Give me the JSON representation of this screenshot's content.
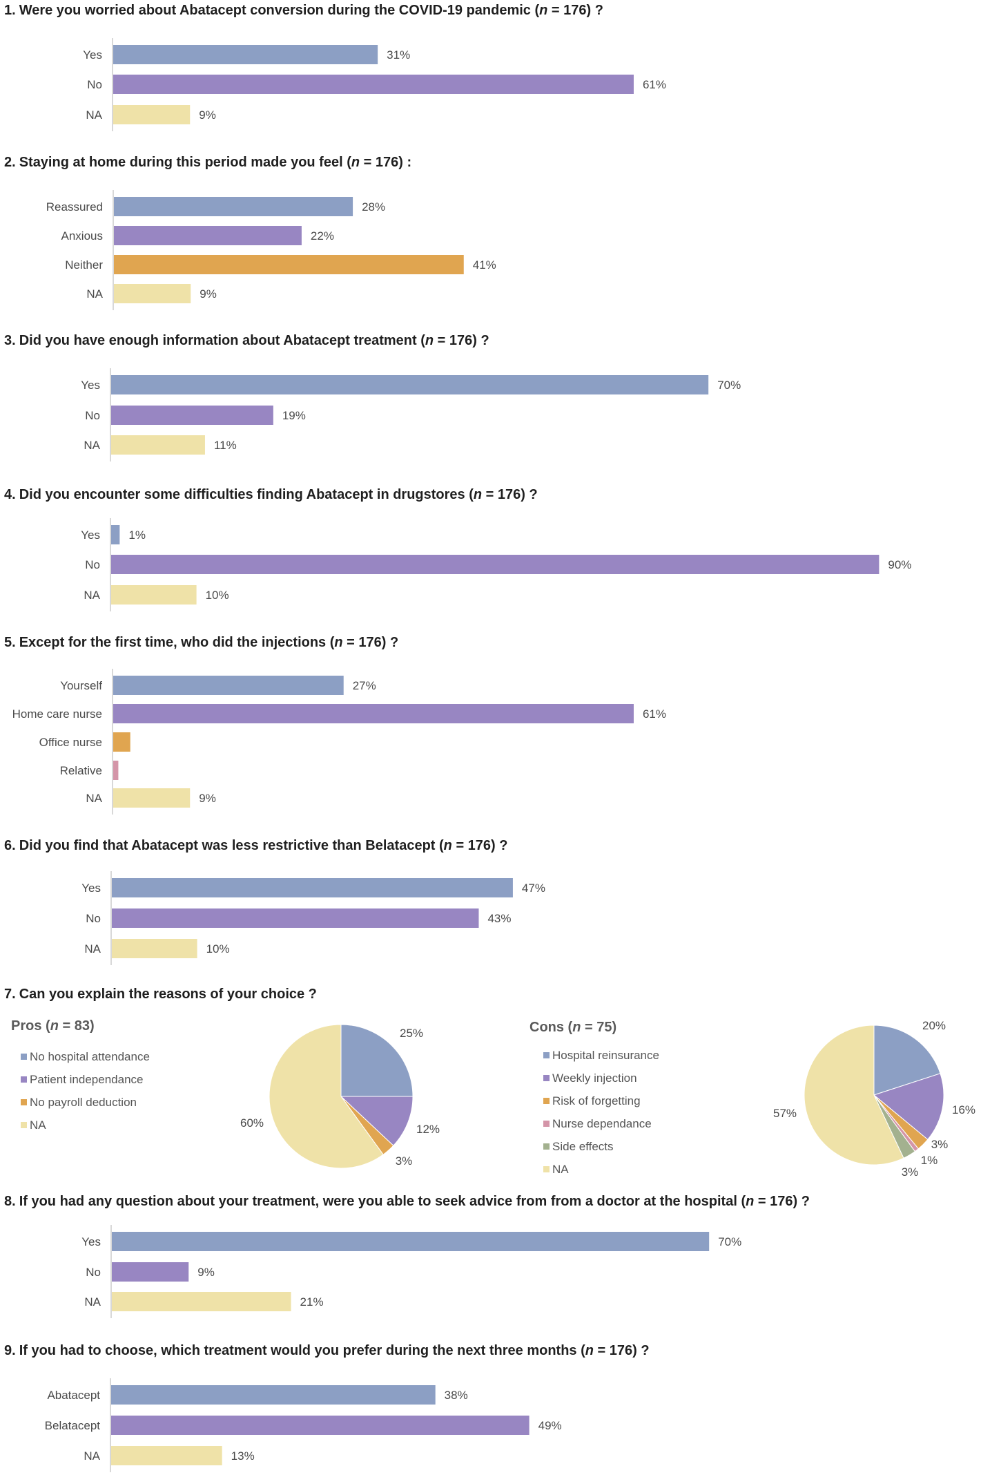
{
  "palette": {
    "blue": "#8c9fc4",
    "purple": "#9886c2",
    "orange": "#e0a550",
    "pink": "#d495a8",
    "green": "#a3b18f",
    "yellow": "#efe2a8",
    "axis": "#cccccc"
  },
  "questions": [
    {
      "num": "1.",
      "pre": "Were you worried about Abatacept conversion during the COVID-19 pandemic (",
      "n": "n",
      "post": " = 176) ?",
      "chart_data": {
        "type": "bar",
        "orientation": "horizontal",
        "categories": [
          "Yes",
          "No",
          "NA"
        ],
        "values": [
          31,
          61,
          9
        ],
        "labels": [
          "31%",
          "61%",
          "9%"
        ],
        "colors": [
          "blue",
          "purple",
          "yellow"
        ]
      }
    },
    {
      "num": "2.",
      "pre": "Staying at home during this period made you feel (",
      "n": "n",
      "post": " = 176) :",
      "chart_data": {
        "type": "bar",
        "orientation": "horizontal",
        "categories": [
          "Reassured",
          "Anxious",
          "Neither",
          "NA"
        ],
        "values": [
          28,
          22,
          41,
          9
        ],
        "labels": [
          "28%",
          "22%",
          "41%",
          "9%"
        ],
        "colors": [
          "blue",
          "purple",
          "orange",
          "yellow"
        ]
      }
    },
    {
      "num": "3.",
      "pre": "Did you have enough information about Abatacept treatment (",
      "n": "n",
      "post": " = 176) ?",
      "chart_data": {
        "type": "bar",
        "orientation": "horizontal",
        "categories": [
          "Yes",
          "No",
          "NA"
        ],
        "values": [
          70,
          19,
          11
        ],
        "labels": [
          "70%",
          "19%",
          "11%"
        ],
        "colors": [
          "blue",
          "purple",
          "yellow"
        ]
      }
    },
    {
      "num": "4.",
      "pre": "Did you encounter some difficulties finding Abatacept in drugstores (",
      "n": "n",
      "post": " = 176) ?",
      "chart_data": {
        "type": "bar",
        "orientation": "horizontal",
        "categories": [
          "Yes",
          "No",
          "NA"
        ],
        "values": [
          1,
          90,
          10
        ],
        "labels": [
          "1%",
          "90%",
          "10%"
        ],
        "colors": [
          "blue",
          "purple",
          "yellow"
        ]
      }
    },
    {
      "num": "5.",
      "pre": "Except for the first time, who did the injections (",
      "n": "n",
      "post": " = 176) ?",
      "chart_data": {
        "type": "bar",
        "orientation": "horizontal",
        "categories": [
          "Yourself",
          "Home care nurse",
          "Office nurse",
          "Relative",
          "NA"
        ],
        "values": [
          27,
          61,
          2,
          0.6,
          9
        ],
        "labels": [
          "27%",
          "61%",
          "",
          "",
          "9%"
        ],
        "colors": [
          "blue",
          "purple",
          "orange",
          "pink",
          "yellow"
        ]
      }
    },
    {
      "num": "6.",
      "pre": "Did you find that Abatacept was less restrictive than Belatacept (",
      "n": "n",
      "post": " = 176) ?",
      "chart_data": {
        "type": "bar",
        "orientation": "horizontal",
        "categories": [
          "Yes",
          "No",
          "NA"
        ],
        "values": [
          47,
          43,
          10
        ],
        "labels": [
          "47%",
          "43%",
          "10%"
        ],
        "colors": [
          "blue",
          "purple",
          "yellow"
        ]
      }
    },
    {
      "num": "7.",
      "pre": "Can you explain the reasons of your choice ?",
      "n": "",
      "post": "",
      "pies": [
        {
          "head": "Pros (",
          "n": "n",
          "tail": " = 83)",
          "chart_data": {
            "type": "pie",
            "categories": [
              "No hospital attendance",
              "Patient independance",
              "No payroll deduction",
              "NA"
            ],
            "values": [
              25,
              12,
              3,
              60
            ],
            "labels": [
              "25%",
              "12%",
              "3%",
              "60%"
            ],
            "colors": [
              "blue",
              "purple",
              "orange",
              "yellow"
            ]
          }
        },
        {
          "head": "Cons (",
          "n": "n",
          "tail": " = 75)",
          "chart_data": {
            "type": "pie",
            "categories": [
              "Hospital reinsurance",
              "Weekly injection",
              "Risk of forgetting",
              "Nurse dependance",
              "Side effects",
              "NA"
            ],
            "values": [
              20,
              16,
              3,
              1,
              3,
              57
            ],
            "labels": [
              "20%",
              "16%",
              "3%",
              "1%",
              "3%",
              "57%"
            ],
            "colors": [
              "blue",
              "purple",
              "orange",
              "pink",
              "green",
              "yellow"
            ]
          }
        }
      ]
    },
    {
      "num": "8.",
      "pre": "If you had any question about your treatment, were you able to seek advice from from a doctor at the hospital (",
      "n": "n",
      "post": " = 176) ?",
      "chart_data": {
        "type": "bar",
        "orientation": "horizontal",
        "categories": [
          "Yes",
          "No",
          "NA"
        ],
        "values": [
          70,
          9,
          21
        ],
        "labels": [
          "70%",
          "9%",
          "21%"
        ],
        "colors": [
          "blue",
          "purple",
          "yellow"
        ]
      }
    },
    {
      "num": "9.",
      "pre": "If you had to choose, which treatment would you prefer during the next three months (",
      "n": "n",
      "post": " = 176) ?",
      "chart_data": {
        "type": "bar",
        "orientation": "horizontal",
        "categories": [
          "Abatacept",
          "Belatacept",
          "NA"
        ],
        "values": [
          38,
          49,
          13
        ],
        "labels": [
          "38%",
          "49%",
          "13%"
        ],
        "colors": [
          "blue",
          "purple",
          "yellow"
        ]
      }
    }
  ]
}
